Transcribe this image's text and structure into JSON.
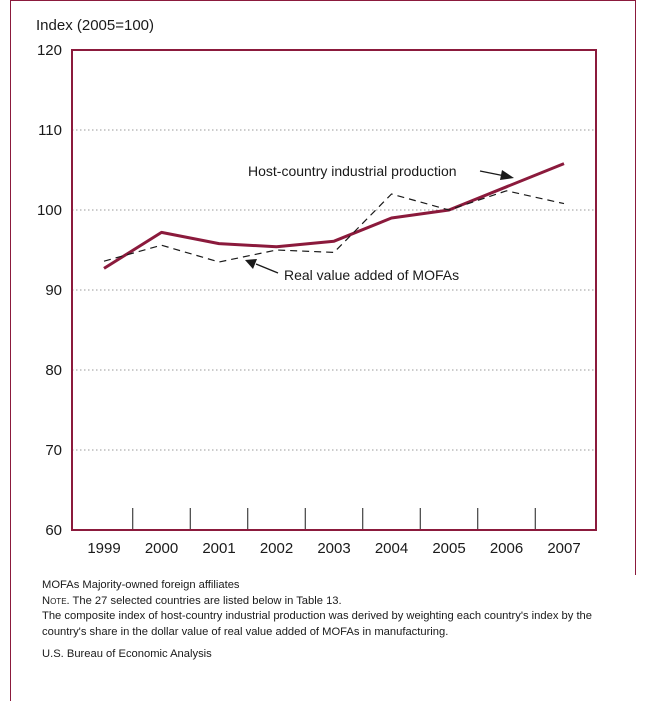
{
  "colors": {
    "frame": "#8b1a3c",
    "host_series": "#8b1a3c",
    "mofa_series": "#1a1a1a",
    "grid": "#999999"
  },
  "chart_data": {
    "type": "line",
    "ylabel": "Index (2005=100)",
    "ylim": [
      60,
      120
    ],
    "yticks": [
      60,
      70,
      80,
      90,
      100,
      110,
      120
    ],
    "categories": [
      "1999",
      "2000",
      "2001",
      "2002",
      "2003",
      "2004",
      "2005",
      "2006",
      "2007"
    ],
    "grid": "horizontal dotted",
    "series": [
      {
        "name": "Host-country industrial production",
        "style": "solid",
        "values": [
          92.7,
          97.2,
          95.8,
          95.4,
          96.1,
          99.0,
          100.0,
          102.9,
          105.8
        ]
      },
      {
        "name": "Real value added of MOFAs",
        "style": "dashed",
        "values": [
          93.6,
          95.6,
          93.5,
          95.0,
          94.7,
          102.0,
          100.0,
          102.4,
          100.8
        ]
      }
    ]
  },
  "notes": {
    "abbreviation": "MOFAs Majority-owned foreign affiliates",
    "note_label": "Note.",
    "note_text": " The 27 selected countries are listed below in Table 13.",
    "composite": "The composite index of host-country industrial production was derived by weighting each country's index by the country's share in the dollar value of real value added of MOFAs in manufacturing.",
    "source": "U.S. Bureau of Economic Analysis"
  }
}
